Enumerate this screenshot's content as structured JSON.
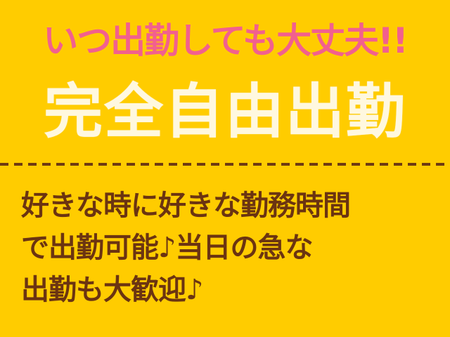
{
  "banner": {
    "headline": "いつ出勤しても大丈夫!!",
    "title": "完全自由出勤",
    "body_lines": [
      "好きな時に好きな勤務時間",
      "で出勤可能♪当日の急な",
      "出勤も大歓迎♪"
    ],
    "colors": {
      "background": "#ffcc00",
      "headline": "#f2608e",
      "title": "#fff8df",
      "body": "#6b3411",
      "divider": "#6e3a12"
    }
  }
}
